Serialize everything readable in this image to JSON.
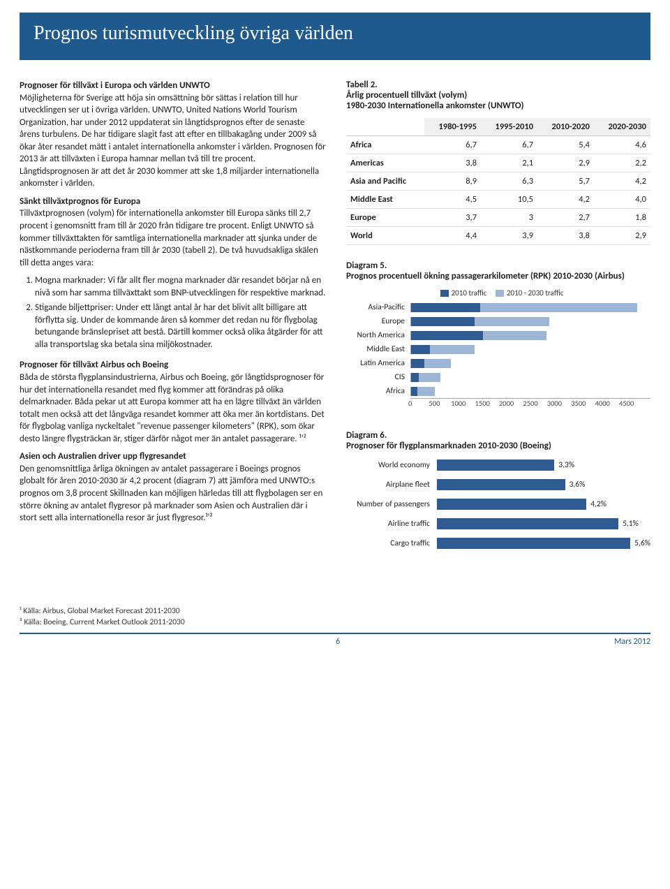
{
  "header": {
    "title": "Prognos turismutveckling övriga världen"
  },
  "left": {
    "h1": "Prognoser för tillväxt i Europa och världen UNWTO",
    "p1": "Möjligheterna för Sverige att höja sin omsättning bör sättas i relation till hur utvecklingen ser ut i övriga världen. UNWTO, United Nations World Tourism Organization, har under 2012 uppdaterat sin långtidsprognos efter de senaste årens turbulens. De har tidigare slagit fast att efter en tillbakagång under 2009 så ökar åter resandet mätt i antalet internationella ankomster i världen. Prognosen för 2013 är att tillväxten i Europa hamnar mellan två till tre procent. Långtidsprognosen är att det år 2030 kommer att ske 1,8 miljarder internationella ankomster i världen.",
    "h2": "Sänkt tillväxtprognos för Europa",
    "p2": "Tillväxtprognosen (volym) för internationella ankomster till Europa sänks till 2,7 procent i genomsnitt fram till år 2020 från tidigare tre procent. Enligt UNWTO så kommer tillväxttakten för samtliga internationella marknader att sjunka under de nästkommande perioderna fram till år 2030 (tabell 2). De två huvudsakliga skälen till detta anges vara:",
    "li1": "Mogna marknader: Vi får allt fler mogna marknader där resandet börjar nå en nivå som har samma tillväxttakt som BNP-utvecklingen för respektive marknad.",
    "li2": "Stigande biljettpriser: Under ett långt antal år har det blivit allt billigare att förflytta sig. Under de kommande åren så kommer det redan nu för flygbolag betungande bränslepriset att bestå. Därtill kommer också olika åtgärder för att alla transportslag ska betala sina miljökostnader.",
    "h3": "Prognoser för tillväxt Airbus och Boeing",
    "p3": "Båda de största flygplansindustrierna, Airbus och Boeing, gör långtidsprognoser för hur det internationella resandet med flyg kommer att förändras på olika delmarknader. Båda pekar ut att Europa kommer att ha en lägre tillväxt än världen totalt men också att det långväga resandet kommer att öka mer än kortdistans. Det för flygbolag vanliga nyckeltalet \"revenue passenger kilometers\" (RPK), som ökar desto längre flygsträckan är, stiger därför något mer än antalet passagerare. ¹'²",
    "h4": "Asien och Australien driver upp flygresandet",
    "p4": "Den genomsnittliga årliga ökningen av antalet passagerare i Boeings prognos globalt för åren 2010-2030 är 4,2 procent (diagram 7) att jämföra med UNWTO:s prognos om 3,8 procent Skillnaden kan möjligen härledas till att flygbolagen ser en större ökning av antalet flygresor på marknader som Asien och Australien där i stort sett alla internationella resor är just flygresor.¹'²"
  },
  "tabell2": {
    "title": "Tabell 2.",
    "subtitle1": "Årlig procentuell tillväxt (volym)",
    "subtitle2": "1980-2030 Internationella ankomster  (UNWTO)",
    "cols": [
      "",
      "1980-1995",
      "1995-2010",
      "2010-2020",
      "2020-2030"
    ],
    "rows": [
      [
        "Africa",
        "6,7",
        "6,7",
        "5,4",
        "4,6"
      ],
      [
        "Americas",
        "3,8",
        "2,1",
        "2,9",
        "2,2"
      ],
      [
        "Asia and Pacific",
        "8,9",
        "6,3",
        "5,7",
        "4,2"
      ],
      [
        "Middle East",
        "4,5",
        "10,5",
        "4,2",
        "4,0"
      ],
      [
        "Europe",
        "3,7",
        "3",
        "2,7",
        "1,8"
      ],
      [
        "World",
        "4,4",
        "3,9",
        "3,8",
        "2,9"
      ]
    ]
  },
  "diagram5": {
    "title": "Diagram 5.",
    "subtitle": "Prognos procentuell ökning  passagerarkilometer (RPK)  2010-2030 (Airbus)",
    "legend1": "2010 traffic",
    "legend2": "2010 - 2030 traffic",
    "colors": {
      "a": "#2f5b93",
      "b": "#9db6d6",
      "grid": "#dcdcdc",
      "axis": "#888888"
    },
    "xmax": 4500,
    "xticks": [
      "0",
      "500",
      "1000",
      "1500",
      "2000",
      "2500",
      "3000",
      "3500",
      "4000",
      "4500"
    ],
    "rows": [
      {
        "label": "Asia-Pacific",
        "a": 1300,
        "b": 4250
      },
      {
        "label": "Europe",
        "a": 1200,
        "b": 2600
      },
      {
        "label": "North America",
        "a": 1350,
        "b": 2550
      },
      {
        "label": "Middle East",
        "a": 350,
        "b": 1200
      },
      {
        "label": "Latin America",
        "a": 250,
        "b": 750
      },
      {
        "label": "CIS",
        "a": 150,
        "b": 550
      },
      {
        "label": "Africa",
        "a": 120,
        "b": 450
      }
    ]
  },
  "diagram6": {
    "title": "Diagram 6.",
    "subtitle": "Prognoser för flygplansmarknaden 2010-2030 (Boeing)",
    "color": "#2f5b93",
    "xmax": 6.0,
    "rows": [
      {
        "label": "World economy",
        "v": 3.3,
        "txt": "3,3%"
      },
      {
        "label": "Airplane fleet",
        "v": 3.6,
        "txt": "3,6%"
      },
      {
        "label": "Number of passengers",
        "v": 4.2,
        "txt": "4,2%"
      },
      {
        "label": "Airline traffic",
        "v": 5.1,
        "txt": "5,1%"
      },
      {
        "label": "Cargo traffic",
        "v": 5.6,
        "txt": "5,6%"
      }
    ]
  },
  "footnotes": {
    "f1": "¹ Källa: Airbus, Global Market Forecast 2011-2030",
    "f2": "² Källa: Boeing, Current Market Outlook 2011-2030"
  },
  "footer": {
    "page": "6",
    "date": "Mars 2012"
  }
}
